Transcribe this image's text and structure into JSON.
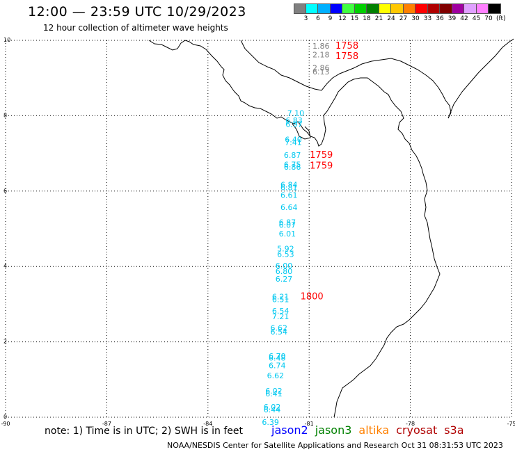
{
  "header": {
    "title": "12:00 — 23:59 UTC 10/29/2023",
    "subtitle": "12 hour collection of altimeter wave heights"
  },
  "colorbar": {
    "labels": [
      "3",
      "6",
      "9",
      "12",
      "15",
      "18",
      "21",
      "24",
      "27",
      "30",
      "33",
      "36",
      "39",
      "42",
      "45",
      "70"
    ],
    "unit": "(ft)",
    "colors": [
      "#808080",
      "#00ffff",
      "#00b0ff",
      "#0000ff",
      "#40ff40",
      "#00d000",
      "#008000",
      "#ffff00",
      "#ffc800",
      "#ff8000",
      "#ff0000",
      "#b00000",
      "#800000",
      "#a000a0",
      "#e0a0ff",
      "#ff80ff",
      "#000000"
    ]
  },
  "chart_data": {
    "type": "map",
    "lon_range": [
      -90,
      -75
    ],
    "lat_range": [
      0,
      10
    ],
    "x_tick_labels": [
      "-90",
      "-87",
      "-84",
      "-81",
      "-78",
      "-75"
    ],
    "y_tick_labels": [
      "0",
      "2",
      "4",
      "6",
      "8",
      "10"
    ],
    "grid": true,
    "observations": [
      {
        "text": "1.86",
        "lon": -80.9,
        "lat": 9.78,
        "color": "#808080"
      },
      {
        "text": "2.18",
        "lon": -80.9,
        "lat": 9.55,
        "color": "#808080"
      },
      {
        "text": "2.86",
        "lon": -80.9,
        "lat": 9.2,
        "color": "#808080"
      },
      {
        "text": "6.13",
        "lon": -80.9,
        "lat": 9.1,
        "color": "#808080"
      },
      {
        "text": "7.10",
        "lon": -81.65,
        "lat": 8.0,
        "color": "#00c8f0"
      },
      {
        "text": "6.83",
        "lon": -81.7,
        "lat": 7.8,
        "color": "#00c8f0"
      },
      {
        "text": "6.97",
        "lon": -81.7,
        "lat": 7.7,
        "color": "#00c8f0"
      },
      {
        "text": "6.40",
        "lon": -81.72,
        "lat": 7.3,
        "color": "#00c8f0"
      },
      {
        "text": "7.41",
        "lon": -81.72,
        "lat": 7.22,
        "color": "#00c8f0"
      },
      {
        "text": "6.87",
        "lon": -81.75,
        "lat": 6.88,
        "color": "#00c8f0"
      },
      {
        "text": "6.75",
        "lon": -81.75,
        "lat": 6.63,
        "color": "#00c8f0"
      },
      {
        "text": "6.86",
        "lon": -81.75,
        "lat": 6.57,
        "color": "#00c8f0"
      },
      {
        "text": "6.84",
        "lon": -81.85,
        "lat": 6.1,
        "color": "#00c8f0"
      },
      {
        "text": "6.81",
        "lon": -81.85,
        "lat": 6.02,
        "color": "#00c8f0"
      },
      {
        "text": "6.61",
        "lon": -81.85,
        "lat": 5.82,
        "color": "#00c8f0"
      },
      {
        "text": "6.64",
        "lon": -81.85,
        "lat": 5.5,
        "color": "#00c8f0"
      },
      {
        "text": "6.87",
        "lon": -81.9,
        "lat": 5.1,
        "color": "#00c8f0"
      },
      {
        "text": "6.07",
        "lon": -81.9,
        "lat": 5.03,
        "color": "#00c8f0"
      },
      {
        "text": "6.01",
        "lon": -81.9,
        "lat": 4.8,
        "color": "#00c8f0"
      },
      {
        "text": "5.92",
        "lon": -81.95,
        "lat": 4.4,
        "color": "#00c8f0"
      },
      {
        "text": "6.53",
        "lon": -81.95,
        "lat": 4.25,
        "color": "#00c8f0"
      },
      {
        "text": "6.00",
        "lon": -82.0,
        "lat": 3.95,
        "color": "#00c8f0"
      },
      {
        "text": "6.80",
        "lon": -82.0,
        "lat": 3.8,
        "color": "#00c8f0"
      },
      {
        "text": "6.27",
        "lon": -82.0,
        "lat": 3.6,
        "color": "#00c8f0"
      },
      {
        "text": "6.21",
        "lon": -82.1,
        "lat": 3.13,
        "color": "#00c8f0"
      },
      {
        "text": "6.51",
        "lon": -82.1,
        "lat": 3.05,
        "color": "#00c8f0"
      },
      {
        "text": "6.54",
        "lon": -82.1,
        "lat": 2.75,
        "color": "#00c8f0"
      },
      {
        "text": "7.21",
        "lon": -82.1,
        "lat": 2.6,
        "color": "#00c8f0"
      },
      {
        "text": "6.62",
        "lon": -82.15,
        "lat": 2.3,
        "color": "#00c8f0"
      },
      {
        "text": "6.54",
        "lon": -82.15,
        "lat": 2.2,
        "color": "#00c8f0"
      },
      {
        "text": "6.70",
        "lon": -82.2,
        "lat": 1.55,
        "color": "#00c8f0"
      },
      {
        "text": "6.48",
        "lon": -82.2,
        "lat": 1.5,
        "color": "#00c8f0"
      },
      {
        "text": "6.74",
        "lon": -82.2,
        "lat": 1.3,
        "color": "#00c8f0"
      },
      {
        "text": "6.62",
        "lon": -82.25,
        "lat": 1.03,
        "color": "#00c8f0"
      },
      {
        "text": "6.02",
        "lon": -82.3,
        "lat": 0.63,
        "color": "#00c8f0"
      },
      {
        "text": "6.41",
        "lon": -82.3,
        "lat": 0.55,
        "color": "#00c8f0"
      },
      {
        "text": "6.02",
        "lon": -82.35,
        "lat": 0.2,
        "color": "#00c8f0"
      },
      {
        "text": "6.44",
        "lon": -82.35,
        "lat": 0.13,
        "color": "#00c8f0"
      },
      {
        "text": "6.39",
        "lon": -82.4,
        "lat": -0.2,
        "color": "#00c8f0"
      }
    ],
    "time_labels": [
      {
        "text": "1758",
        "lon": -80.22,
        "lat": 9.78,
        "color": "#ff0000"
      },
      {
        "text": "1758",
        "lon": -80.22,
        "lat": 9.5,
        "color": "#ff0000"
      },
      {
        "text": "1759",
        "lon": -80.98,
        "lat": 6.88,
        "color": "#ff0000"
      },
      {
        "text": "1759",
        "lon": -80.98,
        "lat": 6.6,
        "color": "#ff0000"
      },
      {
        "text": "1800",
        "lon": -81.26,
        "lat": 3.13,
        "color": "#ff0000"
      }
    ]
  },
  "footer": {
    "note": "note:  1) Time is in UTC;  2) SWH is in feet",
    "credit": "NOAA/NESDIS Center for Satellite Applications and Research    Oct 31 08:31:53 UTC 2023"
  },
  "legend": {
    "items": [
      {
        "label": "jason2",
        "color": "#0000ff"
      },
      {
        "label": "jason3",
        "color": "#008000"
      },
      {
        "label": "altika",
        "color": "#ff8000"
      },
      {
        "label": "cryosat",
        "color": "#b00000"
      },
      {
        "label": "s3a",
        "color": "#b00000"
      }
    ]
  }
}
